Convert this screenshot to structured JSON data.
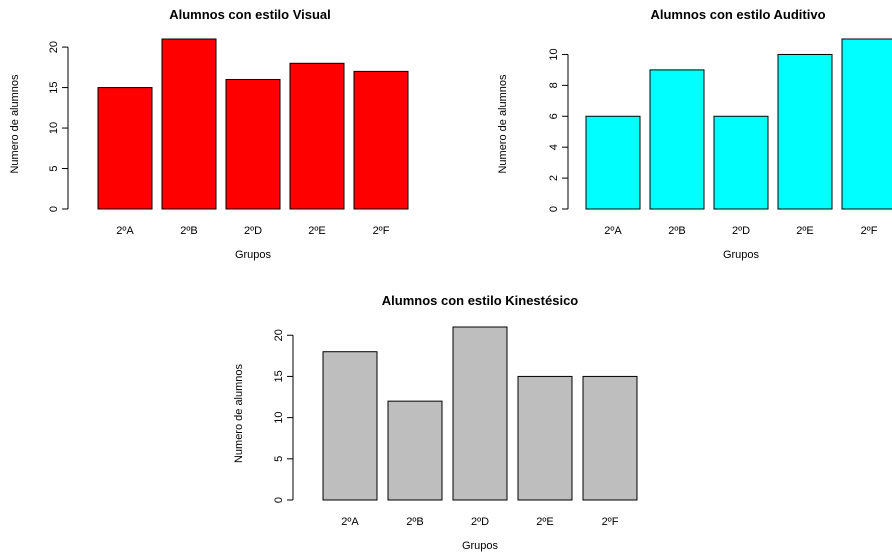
{
  "chart_data": [
    {
      "type": "bar",
      "title": "Alumnos con estilo Visual",
      "xlabel": "Grupos",
      "ylabel": "Numero de alumnos",
      "categories": [
        "2ºA",
        "2ºB",
        "2ºD",
        "2ºE",
        "2ºF"
      ],
      "values": [
        15,
        21,
        16,
        18,
        17
      ],
      "ylim": [
        0,
        21
      ],
      "yticks": [
        0,
        5,
        10,
        15,
        20
      ],
      "color": "#ff0000",
      "grid": false
    },
    {
      "type": "bar",
      "title": "Alumnos con estilo Auditivo",
      "xlabel": "Grupos",
      "ylabel": "Numero de alumnos",
      "categories": [
        "2ºA",
        "2ºB",
        "2ºD",
        "2ºE",
        "2ºF"
      ],
      "values": [
        6,
        9,
        6,
        10,
        11
      ],
      "ylim": [
        0,
        11
      ],
      "yticks": [
        0,
        2,
        4,
        6,
        8,
        10
      ],
      "color": "#00ffff",
      "grid": false
    },
    {
      "type": "bar",
      "title": "Alumnos con estilo Kinestésico",
      "xlabel": "Grupos",
      "ylabel": "Numero de alumnos",
      "categories": [
        "2ºA",
        "2ºB",
        "2ºD",
        "2ºE",
        "2ºF"
      ],
      "values": [
        18,
        12,
        21,
        15,
        15
      ],
      "ylim": [
        0,
        21
      ],
      "yticks": [
        0,
        5,
        10,
        15,
        20
      ],
      "color": "#bebebe",
      "grid": false
    }
  ]
}
